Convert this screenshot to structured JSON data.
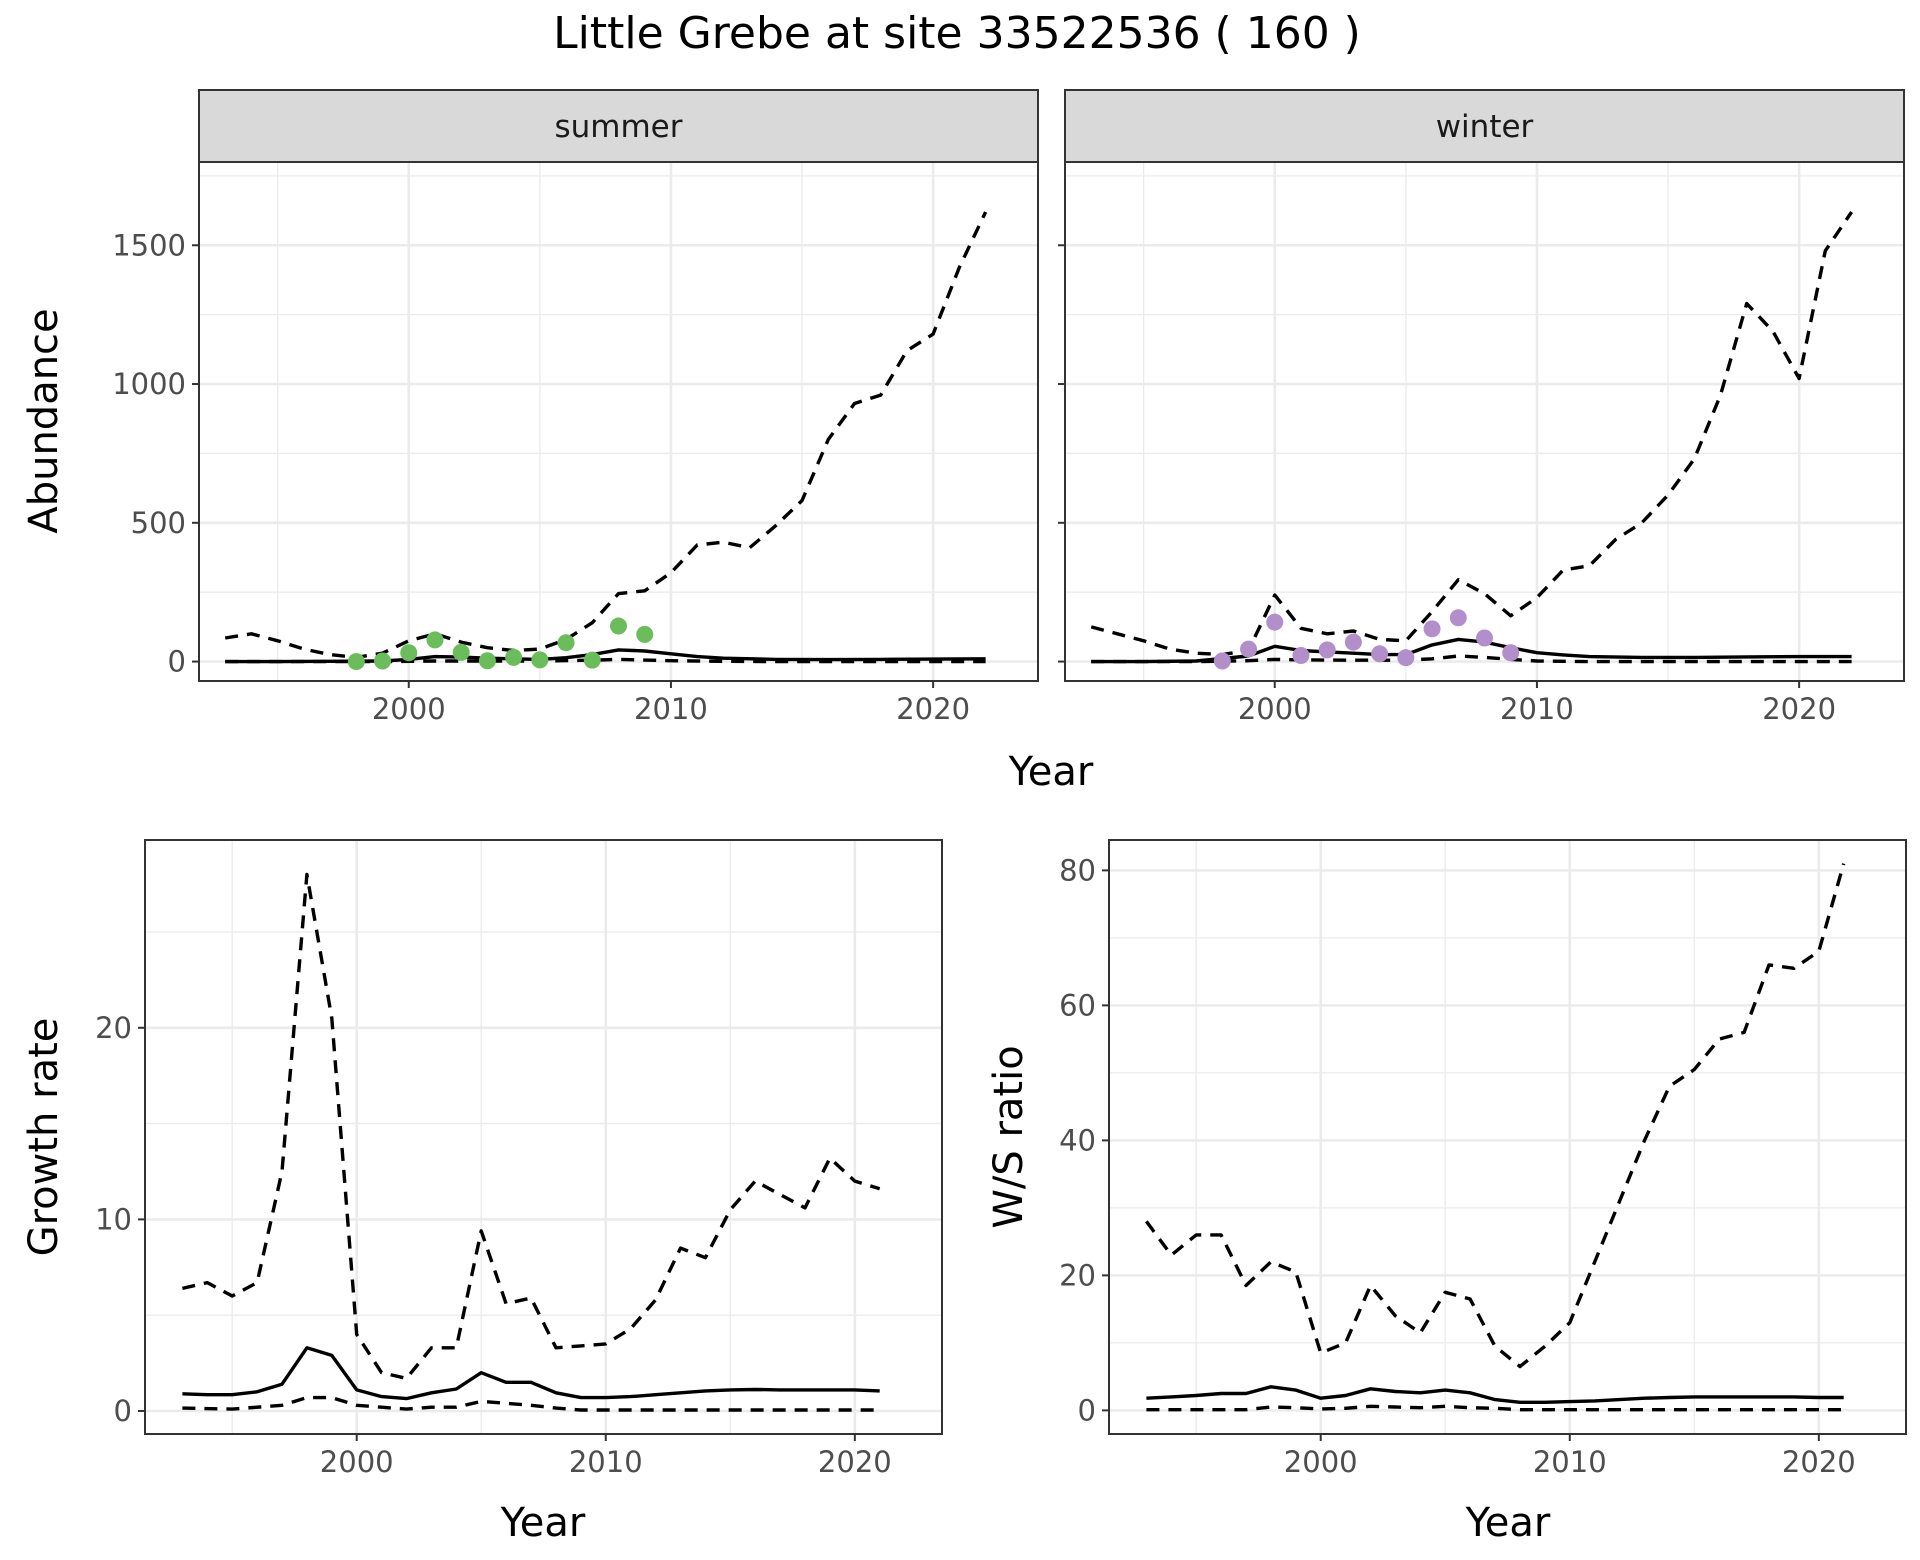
{
  "title": "Little Grebe at site 33522536 ( 160 )",
  "chart_data": [
    {
      "type": "line",
      "panel": "summer",
      "facet_label": "summer",
      "xlabel": "Year",
      "ylabel": "Abundance",
      "xlim": [
        1992,
        2024
      ],
      "ylim": [
        -70,
        1800
      ],
      "xticks": [
        2000,
        2010,
        2020
      ],
      "yticks": [
        0,
        500,
        1000,
        1500
      ],
      "grid": true,
      "point_color": "#6bbd5b",
      "series": [
        {
          "style": "solid",
          "x": [
            1993,
            1995,
            1997,
            1999,
            2000,
            2001,
            2002,
            2003,
            2004,
            2005,
            2006,
            2007,
            2008,
            2009,
            2010,
            2011,
            2012,
            2014,
            2016,
            2018,
            2020,
            2022
          ],
          "y": [
            0,
            0,
            1,
            2,
            8,
            18,
            16,
            12,
            10,
            8,
            14,
            25,
            42,
            38,
            28,
            18,
            12,
            8,
            7,
            8,
            9,
            10
          ]
        },
        {
          "style": "dashed",
          "x": [
            1993,
            1994,
            1995,
            1996,
            1997,
            1998,
            1999,
            2000,
            2001,
            2002,
            2003,
            2004,
            2005,
            2006,
            2007,
            2008,
            2009,
            2010,
            2011,
            2012,
            2013,
            2014,
            2015,
            2016,
            2017,
            2018,
            2019,
            2020,
            2021,
            2022
          ],
          "y": [
            85,
            100,
            75,
            45,
            25,
            15,
            30,
            75,
            100,
            70,
            50,
            40,
            45,
            80,
            140,
            245,
            255,
            320,
            420,
            430,
            410,
            490,
            580,
            800,
            930,
            960,
            1120,
            1180,
            1420,
            1620
          ]
        },
        {
          "style": "dashed",
          "x": [
            1993,
            1995,
            1997,
            1999,
            2001,
            2003,
            2005,
            2007,
            2008,
            2010,
            2012,
            2014,
            2016,
            2018,
            2020,
            2022
          ],
          "y": [
            0,
            0,
            0,
            0,
            2,
            2,
            2,
            5,
            8,
            3,
            1,
            0,
            0,
            0,
            0,
            0
          ]
        }
      ],
      "points": {
        "x": [
          1998,
          1999,
          2000,
          2001,
          2002,
          2003,
          2004,
          2005,
          2006,
          2007,
          2008,
          2009
        ],
        "y": [
          0,
          2,
          32,
          78,
          33,
          3,
          15,
          6,
          68,
          5,
          128,
          98
        ]
      }
    },
    {
      "type": "line",
      "panel": "winter",
      "facet_label": "winter",
      "xlabel": "Year",
      "ylabel": "",
      "xlim": [
        1992,
        2024
      ],
      "ylim": [
        -70,
        1800
      ],
      "xticks": [
        2000,
        2010,
        2020
      ],
      "yticks": [
        0,
        500,
        1000,
        1500
      ],
      "grid": true,
      "point_color": "#b28fca",
      "series": [
        {
          "style": "solid",
          "x": [
            1993,
            1995,
            1997,
            1999,
            2000,
            2001,
            2002,
            2003,
            2004,
            2005,
            2006,
            2007,
            2008,
            2009,
            2010,
            2011,
            2012,
            2014,
            2016,
            2018,
            2020,
            2022
          ],
          "y": [
            0,
            0,
            2,
            20,
            55,
            40,
            35,
            30,
            25,
            25,
            60,
            80,
            70,
            50,
            32,
            24,
            18,
            15,
            15,
            17,
            18,
            18
          ]
        },
        {
          "style": "dashed",
          "x": [
            1993,
            1994,
            1995,
            1996,
            1997,
            1998,
            1999,
            2000,
            2001,
            2002,
            2003,
            2004,
            2005,
            2006,
            2007,
            2008,
            2009,
            2010,
            2011,
            2012,
            2013,
            2014,
            2015,
            2016,
            2017,
            2018,
            2019,
            2020,
            2021,
            2022
          ],
          "y": [
            125,
            100,
            75,
            45,
            30,
            25,
            40,
            240,
            120,
            100,
            110,
            80,
            75,
            180,
            295,
            245,
            165,
            230,
            330,
            345,
            440,
            500,
            600,
            730,
            960,
            1290,
            1190,
            1020,
            1480,
            1620
          ]
        },
        {
          "style": "dashed",
          "x": [
            1993,
            1995,
            1997,
            1999,
            2000,
            2001,
            2003,
            2005,
            2006,
            2007,
            2008,
            2009,
            2010,
            2012,
            2014,
            2016,
            2018,
            2020,
            2022
          ],
          "y": [
            0,
            0,
            0,
            3,
            8,
            6,
            5,
            5,
            10,
            20,
            15,
            8,
            2,
            0,
            0,
            0,
            0,
            0,
            0
          ]
        }
      ],
      "points": {
        "x": [
          1998,
          1999,
          2000,
          2001,
          2002,
          2003,
          2004,
          2005,
          2006,
          2007,
          2008,
          2009
        ],
        "y": [
          2,
          45,
          142,
          22,
          42,
          70,
          28,
          14,
          118,
          158,
          85,
          32
        ]
      }
    },
    {
      "type": "line",
      "panel": "growth",
      "xlabel": "Year",
      "ylabel": "Growth rate",
      "xlim": [
        1991.5,
        2023.5
      ],
      "ylim": [
        -1.2,
        29.8
      ],
      "xticks": [
        2000,
        2010,
        2020
      ],
      "yticks": [
        0,
        10,
        20
      ],
      "grid": true,
      "series": [
        {
          "style": "solid",
          "x": [
            1993,
            1994,
            1995,
            1996,
            1997,
            1998,
            1999,
            2000,
            2001,
            2002,
            2003,
            2004,
            2005,
            2006,
            2007,
            2008,
            2009,
            2010,
            2011,
            2012,
            2013,
            2014,
            2015,
            2016,
            2017,
            2018,
            2019,
            2020,
            2021
          ],
          "y": [
            0.9,
            0.85,
            0.85,
            1.0,
            1.4,
            3.3,
            2.9,
            1.1,
            0.75,
            0.65,
            0.95,
            1.15,
            2.0,
            1.5,
            1.5,
            0.95,
            0.7,
            0.7,
            0.75,
            0.85,
            0.95,
            1.05,
            1.1,
            1.12,
            1.1,
            1.1,
            1.1,
            1.1,
            1.05
          ]
        },
        {
          "style": "dashed",
          "x": [
            1993,
            1994,
            1995,
            1996,
            1997,
            1998,
            1999,
            2000,
            2001,
            2002,
            2003,
            2004,
            2005,
            2006,
            2007,
            2008,
            2009,
            2010,
            2011,
            2012,
            2013,
            2014,
            2015,
            2016,
            2017,
            2018,
            2019,
            2020,
            2021
          ],
          "y": [
            6.4,
            6.7,
            6.0,
            6.7,
            12.5,
            28.0,
            20.5,
            4.0,
            2.0,
            1.7,
            3.3,
            3.3,
            9.4,
            5.6,
            5.9,
            3.3,
            3.4,
            3.5,
            4.3,
            5.8,
            8.5,
            8.0,
            10.5,
            12.0,
            11.3,
            10.6,
            13.2,
            12.0,
            11.6
          ]
        },
        {
          "style": "dashed",
          "x": [
            1993,
            1995,
            1997,
            1998,
            1999,
            2000,
            2001,
            2002,
            2003,
            2004,
            2005,
            2006,
            2007,
            2008,
            2009,
            2010,
            2012,
            2014,
            2016,
            2018,
            2020,
            2021
          ],
          "y": [
            0.15,
            0.1,
            0.3,
            0.7,
            0.7,
            0.3,
            0.2,
            0.1,
            0.2,
            0.2,
            0.5,
            0.4,
            0.3,
            0.15,
            0.05,
            0.05,
            0.05,
            0.05,
            0.05,
            0.05,
            0.05,
            0.05
          ]
        }
      ]
    },
    {
      "type": "line",
      "panel": "ratio",
      "xlabel": "Year",
      "ylabel": "W/S ratio",
      "xlim": [
        1991.5,
        2023.5
      ],
      "ylim": [
        -3.5,
        84.5
      ],
      "xticks": [
        2000,
        2010,
        2020
      ],
      "yticks": [
        0,
        20,
        40,
        60,
        80
      ],
      "grid": true,
      "series": [
        {
          "style": "solid",
          "x": [
            1993,
            1994,
            1995,
            1996,
            1997,
            1998,
            1999,
            2000,
            2001,
            2002,
            2003,
            2004,
            2005,
            2006,
            2007,
            2008,
            2009,
            2010,
            2011,
            2012,
            2013,
            2014,
            2015,
            2016,
            2017,
            2018,
            2019,
            2020,
            2021
          ],
          "y": [
            1.8,
            2.0,
            2.2,
            2.5,
            2.5,
            3.5,
            3.0,
            1.8,
            2.2,
            3.2,
            2.8,
            2.6,
            3.0,
            2.6,
            1.6,
            1.2,
            1.2,
            1.3,
            1.4,
            1.6,
            1.8,
            1.9,
            2.0,
            2.0,
            2.0,
            2.0,
            2.0,
            1.9,
            1.9
          ]
        },
        {
          "style": "dashed",
          "x": [
            1993,
            1994,
            1995,
            1996,
            1997,
            1998,
            1999,
            2000,
            2001,
            2002,
            2003,
            2004,
            2005,
            2006,
            2007,
            2008,
            2009,
            2010,
            2011,
            2012,
            2013,
            2014,
            2015,
            2016,
            2017,
            2018,
            2019,
            2020,
            2021
          ],
          "y": [
            28,
            23,
            26,
            26,
            18.5,
            22,
            20.5,
            8.5,
            10,
            18.5,
            14,
            11.5,
            17.5,
            16.5,
            9.5,
            6.5,
            9.5,
            13,
            22,
            31,
            40,
            48,
            50.5,
            55,
            56,
            66,
            65.5,
            68,
            81
          ]
        },
        {
          "style": "dashed",
          "x": [
            1993,
            1995,
            1997,
            1998,
            1999,
            2000,
            2001,
            2002,
            2003,
            2004,
            2005,
            2006,
            2007,
            2008,
            2010,
            2012,
            2014,
            2016,
            2018,
            2020,
            2021
          ],
          "y": [
            0.1,
            0.1,
            0.1,
            0.5,
            0.4,
            0.2,
            0.3,
            0.6,
            0.5,
            0.4,
            0.6,
            0.4,
            0.3,
            0.1,
            0.1,
            0.1,
            0.1,
            0.1,
            0.1,
            0.1,
            0.1
          ]
        }
      ]
    }
  ]
}
